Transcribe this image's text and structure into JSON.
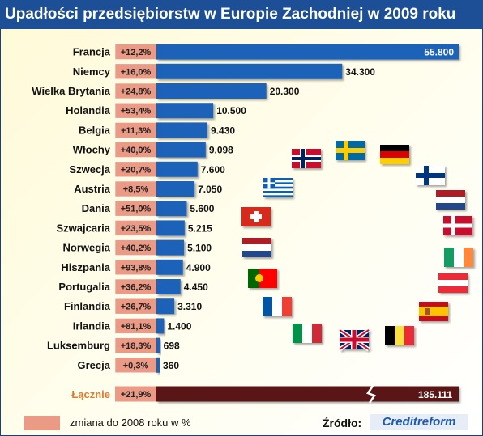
{
  "title": "Upadłości przedsiębiorstw w Europie Zachodniej w 2009 roku",
  "legend": {
    "label": "zmiana do 2008 roku w %",
    "color": "#eb9a86"
  },
  "source": {
    "label": "Źródło:",
    "name": "Creditreform"
  },
  "colors": {
    "bar": "#1e62b8",
    "change_box": "#eb9a86",
    "total_bar": "#5a1418",
    "total_label": "#e07a2e",
    "header": "#1d4f96"
  },
  "chart_data": {
    "type": "bar",
    "orientation": "horizontal",
    "title": "Upadłości przedsiębiorstw w Europie Zachodniej w 2009 roku",
    "categories": [
      "Francja",
      "Niemcy",
      "Wielka Brytania",
      "Holandia",
      "Belgia",
      "Włochy",
      "Szwecja",
      "Austria",
      "Dania",
      "Szwajcaria",
      "Norwegia",
      "Hiszpania",
      "Portugalia",
      "Finlandia",
      "Irlandia",
      "Luksemburg",
      "Grecja"
    ],
    "values": [
      55800,
      34300,
      20300,
      10500,
      9430,
      9098,
      7600,
      7050,
      5600,
      5215,
      5100,
      4900,
      4450,
      3310,
      1400,
      698,
      360
    ],
    "value_labels": [
      "55.800",
      "34.300",
      "20.300",
      "10.500",
      "9.430",
      "9.098",
      "7.600",
      "7.050",
      "5.600",
      "5.215",
      "5.100",
      "4.900",
      "4.450",
      "3.310",
      "1.400",
      "698",
      "360"
    ],
    "changes": [
      "+12,2%",
      "+16,0%",
      "+24,8%",
      "+53,4%",
      "+11,3%",
      "+40,0%",
      "+20,7%",
      "+8,5%",
      "+51,0%",
      "+23,5%",
      "+40,2%",
      "+93,8%",
      "+36,2%",
      "+26,7%",
      "+81,1%",
      "+18,3%",
      "+0,3%"
    ],
    "total": {
      "label": "Łącznie",
      "change": "+21,9%",
      "value": 185111,
      "value_label": "185.111"
    }
  },
  "flags": [
    "norway",
    "sweden",
    "germany",
    "finland",
    "netherlands",
    "denmark",
    "ireland",
    "austria",
    "spain",
    "belgium",
    "uk",
    "italy",
    "france",
    "portugal",
    "netherlands",
    "switzerland",
    "greece"
  ]
}
